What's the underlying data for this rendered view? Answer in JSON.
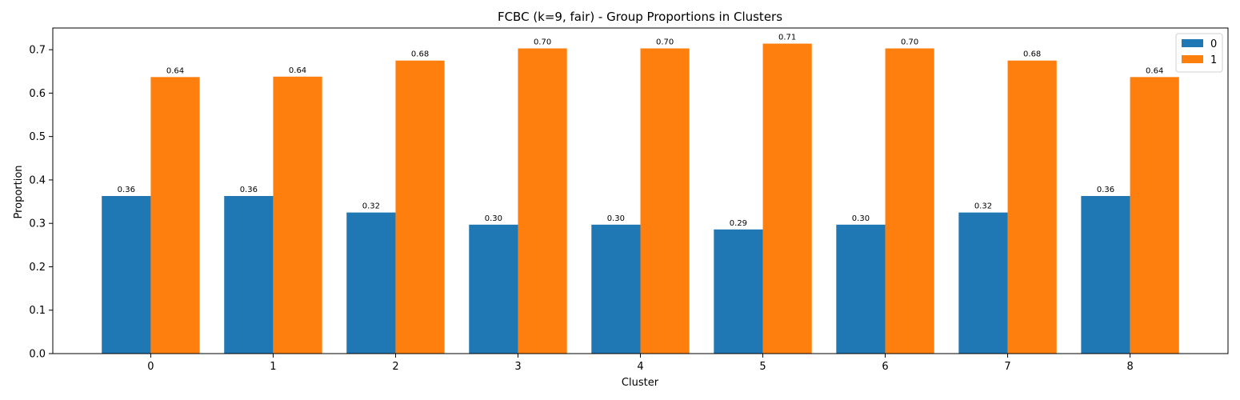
{
  "chart_data": {
    "type": "bar",
    "title": "FCBC (k=9, fair) - Group Proportions in Clusters",
    "xlabel": "Cluster",
    "ylabel": "Proportion",
    "categories": [
      "0",
      "1",
      "2",
      "3",
      "4",
      "5",
      "6",
      "7",
      "8"
    ],
    "ylim": [
      0,
      0.75
    ],
    "yticks": [
      "0.0",
      "0.1",
      "0.2",
      "0.3",
      "0.4",
      "0.5",
      "0.6",
      "0.7"
    ],
    "grid": false,
    "legend_position": "top-right",
    "series": [
      {
        "name": "0",
        "color": "#1f77b4",
        "values": [
          0.363,
          0.363,
          0.325,
          0.297,
          0.297,
          0.286,
          0.297,
          0.325,
          0.363
        ],
        "labels": [
          "0.36",
          "0.36",
          "0.32",
          "0.30",
          "0.30",
          "0.29",
          "0.30",
          "0.32",
          "0.36"
        ]
      },
      {
        "name": "1",
        "color": "#ff7f0e",
        "values": [
          0.637,
          0.638,
          0.675,
          0.703,
          0.703,
          0.714,
          0.703,
          0.675,
          0.637
        ],
        "labels": [
          "0.64",
          "0.64",
          "0.68",
          "0.70",
          "0.70",
          "0.71",
          "0.70",
          "0.68",
          "0.64"
        ]
      }
    ]
  }
}
